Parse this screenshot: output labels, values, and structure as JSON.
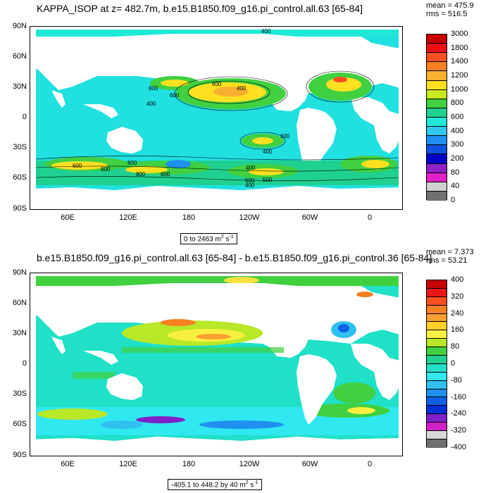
{
  "panel1": {
    "title": "KAPPA_ISOP at z= 482.7m, b.e15.B1850.f09_g16.pi_control.all.63 [65-84]",
    "mean": "mean = 475.9",
    "rms": "rms = 516.5",
    "range": "0 to 2463 m",
    "range_unit_sup1": "2",
    "range_unit_mid": " s",
    "range_unit_sup2": "-1",
    "colorbar_labels": [
      "3000",
      "1800",
      "1400",
      "1200",
      "1000",
      "800",
      "600",
      "400",
      "300",
      "200",
      "80",
      "40",
      "0"
    ],
    "colorbar_colors": [
      "#c80000",
      "#ee1010",
      "#f85020",
      "#f88020",
      "#f8b030",
      "#ffe020",
      "#c8e820",
      "#40d040",
      "#20d090",
      "#20e8d8",
      "#30c8f0",
      "#2090f0",
      "#1050e0",
      "#0000c8",
      "#9020c8",
      "#e020c8",
      "#d0d0d0",
      "#707070"
    ],
    "contour_labels": [
      "400",
      "600",
      "800",
      "600",
      "400",
      "400",
      "600",
      "400",
      "600",
      "800",
      "600",
      "800",
      "600",
      "400",
      "600",
      "500",
      "400"
    ]
  },
  "panel2": {
    "title": "b.e15.B1850.f09_g16.pi_control.all.63 [65-84] - b.e15.B1850.f09_g16.pi_control.36 [65-84]",
    "mean": "mean = 7.373",
    "rms": "rms = 53.21",
    "range": "-405.1 to 448.2 by 40 m",
    "range_unit_sup1": "2",
    "range_unit_mid": " s",
    "range_unit_sup2": "-1",
    "colorbar_labels": [
      "400",
      "320",
      "240",
      "160",
      "80",
      "0",
      "-80",
      "-160",
      "-240",
      "-320",
      "-400"
    ],
    "colorbar_colors": [
      "#c80000",
      "#e81818",
      "#f85020",
      "#f88020",
      "#f8a030",
      "#ffd028",
      "#f8f040",
      "#b8e828",
      "#40d040",
      "#20d090",
      "#20e0c8",
      "#30e8f0",
      "#30c0f0",
      "#2090f0",
      "#1060e8",
      "#0030d8",
      "#8020c8",
      "#d020c8",
      "#d8d8d8",
      "#707070"
    ]
  },
  "axes": {
    "lat_labels": [
      "90N",
      "60N",
      "30N",
      "0",
      "30S",
      "60S",
      "90S"
    ],
    "lon_labels": [
      "60E",
      "120E",
      "180",
      "120W",
      "60W",
      "0"
    ]
  }
}
